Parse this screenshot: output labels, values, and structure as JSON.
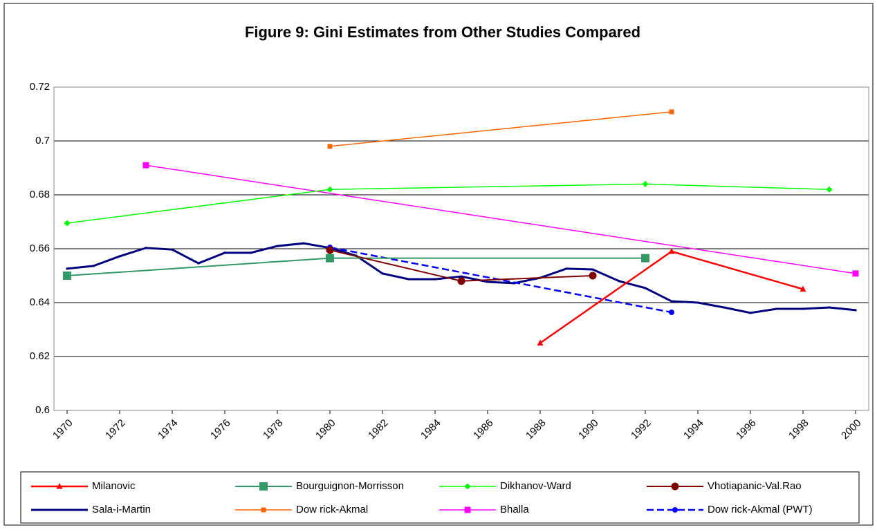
{
  "chart_data": {
    "type": "line",
    "title": "Figure 9: Gini Estimates from Other Studies Compared",
    "xlim": [
      1969.5,
      2000.5
    ],
    "xticks": [
      1970,
      1972,
      1974,
      1976,
      1978,
      1980,
      1982,
      1984,
      1986,
      1988,
      1990,
      1992,
      1994,
      1996,
      1998,
      2000
    ],
    "ylim": [
      0.6,
      0.72
    ],
    "yticks": [
      0.6,
      0.62,
      0.64,
      0.66,
      0.68,
      0.7,
      0.72
    ],
    "grid": true,
    "legend": "bottom",
    "series": [
      {
        "name": "Milanovic",
        "color": "#ff0000",
        "marker": "triangle",
        "marker_size": 9,
        "line_width": 2.5,
        "x": [
          1988,
          1993,
          1998
        ],
        "values": [
          0.625,
          0.659,
          0.645
        ]
      },
      {
        "name": "Bourguignon-Morrisson",
        "color": "#339966",
        "marker": "square",
        "marker_size": 12,
        "line_width": 2,
        "x": [
          1970,
          1980,
          1992
        ],
        "values": [
          0.65,
          0.6565,
          0.6565
        ]
      },
      {
        "name": "Dikhanov-Ward",
        "color": "#00ff00",
        "marker": "diamond",
        "marker_size": 9,
        "line_width": 1.5,
        "x": [
          1970,
          1980,
          1992,
          1999
        ],
        "values": [
          0.6695,
          0.682,
          0.684,
          0.682
        ]
      },
      {
        "name": "Vhotiapanic-Val.Rao",
        "color": "#800000",
        "marker": "circle",
        "marker_size": 11,
        "line_width": 2,
        "x": [
          1980,
          1985,
          1990
        ],
        "values": [
          0.6595,
          0.648,
          0.65
        ]
      },
      {
        "name": "Sala-i-Martin",
        "color": "#000080",
        "marker": "square",
        "marker_size": 3,
        "line_width": 3,
        "x": [
          1970,
          1971,
          1972,
          1973,
          1974,
          1975,
          1976,
          1977,
          1978,
          1979,
          1980,
          1981,
          1982,
          1983,
          1984,
          1985,
          1986,
          1987,
          1988,
          1989,
          1990,
          1991,
          1992,
          1993,
          1994,
          1995,
          1996,
          1997,
          1998,
          1999,
          2000
        ],
        "values": [
          0.6526,
          0.6536,
          0.6572,
          0.6603,
          0.6597,
          0.6546,
          0.6585,
          0.6585,
          0.661,
          0.662,
          0.6603,
          0.6574,
          0.6508,
          0.6487,
          0.6487,
          0.6497,
          0.6477,
          0.6472,
          0.6492,
          0.6526,
          0.6523,
          0.648,
          0.6454,
          0.6405,
          0.64,
          0.6382,
          0.6362,
          0.6377,
          0.6377,
          0.6382,
          0.6372
        ]
      },
      {
        "name": "Dow rick-Akmal",
        "color": "#ff6600",
        "marker": "square",
        "marker_size": 7,
        "line_width": 1.5,
        "x": [
          1980,
          1993
        ],
        "values": [
          0.698,
          0.7108
        ]
      },
      {
        "name": "Bhalla",
        "color": "#ff00ff",
        "marker": "square",
        "marker_size": 9,
        "line_width": 1.5,
        "x": [
          1973,
          2000
        ],
        "values": [
          0.691,
          0.6508
        ]
      },
      {
        "name": "Dow rick-Akmal (PWT)",
        "color": "#0000ff",
        "marker": "circle",
        "marker_size": 8,
        "line_width": 2.5,
        "dash": true,
        "x": [
          1980,
          1993
        ],
        "values": [
          0.6605,
          0.6364
        ]
      }
    ]
  }
}
